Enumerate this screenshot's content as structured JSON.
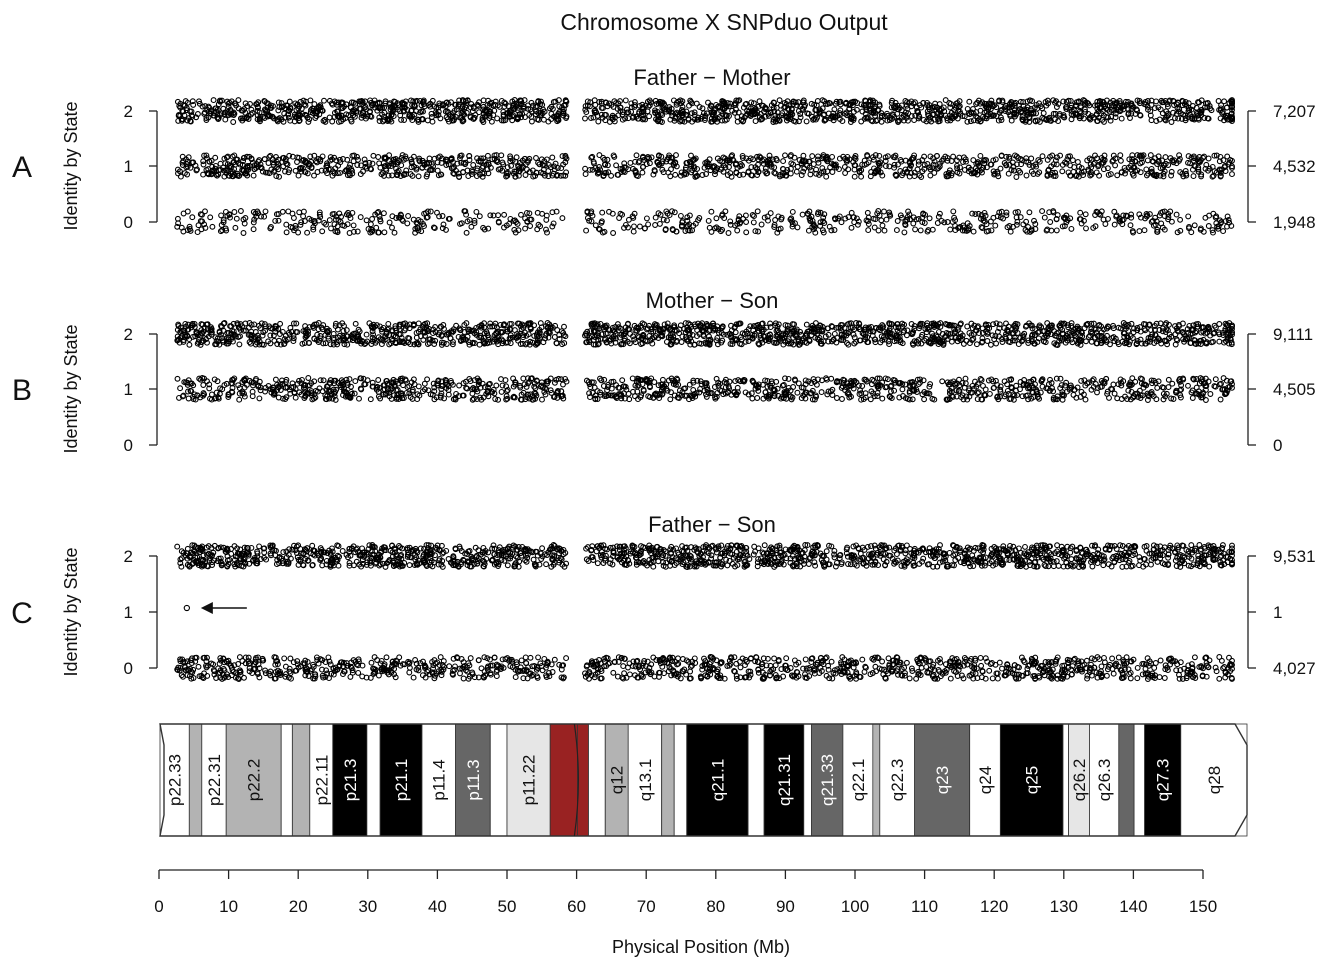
{
  "chart_data": {
    "type": "scatter",
    "title": "Chromosome X SNPduo Output",
    "xlabel": "Physical Position (Mb)",
    "xlim": [
      0,
      150
    ],
    "xticks": [
      0,
      10,
      20,
      30,
      40,
      50,
      60,
      70,
      80,
      90,
      100,
      110,
      120,
      130,
      140,
      150
    ],
    "centromere_gap_mb": [
      58.6,
      61.2
    ],
    "point_range_mb": [
      2.6,
      154.9
    ],
    "panels": [
      {
        "letter": "A",
        "title": "Father − Mother",
        "ylabel": "Identity by State",
        "yticks": [
          0,
          1,
          2
        ],
        "ibs_counts": {
          "2": "7,207",
          "1": "4,532",
          "0": "1,948"
        },
        "rows": [
          {
            "ibs": 2,
            "count": 7207,
            "density": 1.0
          },
          {
            "ibs": 1,
            "count": 4532,
            "density": 0.75
          },
          {
            "ibs": 0,
            "count": 1948,
            "density": 0.45
          }
        ],
        "annotation": null
      },
      {
        "letter": "B",
        "title": "Mother − Son",
        "ylabel": "Identity by State",
        "yticks": [
          0,
          1,
          2
        ],
        "ibs_counts": {
          "2": "9,111",
          "1": "4,505",
          "0": "0"
        },
        "rows": [
          {
            "ibs": 2,
            "count": 9111,
            "density": 1.0
          },
          {
            "ibs": 1,
            "count": 4505,
            "density": 0.75
          }
        ],
        "annotation": null
      },
      {
        "letter": "C",
        "title": "Father − Son",
        "ylabel": "Identity by State",
        "yticks": [
          0,
          1,
          2
        ],
        "ibs_counts": {
          "2": "9,531",
          "1": "1",
          "0": "4,027"
        },
        "rows": [
          {
            "ibs": 2,
            "count": 9531,
            "density": 1.0
          },
          {
            "ibs": 0,
            "count": 4027,
            "density": 0.75
          }
        ],
        "single_points": [
          {
            "ibs": 1,
            "x": 4.0
          }
        ],
        "annotation": {
          "type": "arrow",
          "points_to": {
            "ibs": 1,
            "x": 4.0
          }
        }
      }
    ],
    "ideogram": {
      "bands": [
        {
          "name": "p22.33",
          "start": 0.0,
          "end": 4.2,
          "stain": "gneg"
        },
        {
          "name": "",
          "start": 4.2,
          "end": 6.0,
          "stain": "gpos50"
        },
        {
          "name": "p22.31",
          "start": 6.0,
          "end": 9.5,
          "stain": "gneg"
        },
        {
          "name": "p22.2",
          "start": 9.5,
          "end": 17.4,
          "stain": "gpos50"
        },
        {
          "name": "",
          "start": 17.4,
          "end": 19.0,
          "stain": "gneg"
        },
        {
          "name": "",
          "start": 19.0,
          "end": 21.5,
          "stain": "gpos50"
        },
        {
          "name": "p22.11",
          "start": 21.5,
          "end": 24.8,
          "stain": "gneg"
        },
        {
          "name": "p21.3",
          "start": 24.8,
          "end": 29.7,
          "stain": "gpos100"
        },
        {
          "name": "",
          "start": 29.7,
          "end": 31.6,
          "stain": "gneg"
        },
        {
          "name": "p21.1",
          "start": 31.6,
          "end": 37.6,
          "stain": "gpos100"
        },
        {
          "name": "p11.4",
          "start": 37.6,
          "end": 42.4,
          "stain": "gneg"
        },
        {
          "name": "p11.3",
          "start": 42.4,
          "end": 47.4,
          "stain": "gpos75"
        },
        {
          "name": "",
          "start": 47.4,
          "end": 49.8,
          "stain": "gneg"
        },
        {
          "name": "p11.22",
          "start": 49.8,
          "end": 56.0,
          "stain": "gpos25"
        },
        {
          "name": "",
          "start": 56.0,
          "end": 59.9,
          "stain": "acen"
        },
        {
          "name": "",
          "start": 59.9,
          "end": 61.5,
          "stain": "acen"
        },
        {
          "name": "",
          "start": 61.5,
          "end": 63.9,
          "stain": "gneg"
        },
        {
          "name": "q12",
          "start": 63.9,
          "end": 67.2,
          "stain": "gpos50"
        },
        {
          "name": "q13.1",
          "start": 67.2,
          "end": 72.0,
          "stain": "gneg"
        },
        {
          "name": "",
          "start": 72.0,
          "end": 73.8,
          "stain": "gpos50"
        },
        {
          "name": "",
          "start": 73.8,
          "end": 75.6,
          "stain": "gneg"
        },
        {
          "name": "q21.1",
          "start": 75.6,
          "end": 84.4,
          "stain": "gpos100"
        },
        {
          "name": "",
          "start": 84.4,
          "end": 86.7,
          "stain": "gneg"
        },
        {
          "name": "q21.31",
          "start": 86.7,
          "end": 92.4,
          "stain": "gpos100"
        },
        {
          "name": "",
          "start": 92.4,
          "end": 93.5,
          "stain": "gneg"
        },
        {
          "name": "q21.33",
          "start": 93.5,
          "end": 98.0,
          "stain": "gpos75"
        },
        {
          "name": "q22.1",
          "start": 98.0,
          "end": 102.3,
          "stain": "gneg"
        },
        {
          "name": "",
          "start": 102.3,
          "end": 103.3,
          "stain": "gpos50"
        },
        {
          "name": "q22.3",
          "start": 103.3,
          "end": 108.3,
          "stain": "gneg"
        },
        {
          "name": "q23",
          "start": 108.3,
          "end": 116.2,
          "stain": "gpos75"
        },
        {
          "name": "q24",
          "start": 116.2,
          "end": 120.6,
          "stain": "gneg"
        },
        {
          "name": "q25",
          "start": 120.6,
          "end": 129.6,
          "stain": "gpos100"
        },
        {
          "name": "",
          "start": 129.6,
          "end": 130.4,
          "stain": "gneg"
        },
        {
          "name": "q26.2",
          "start": 130.4,
          "end": 133.4,
          "stain": "gpos25"
        },
        {
          "name": "q26.3",
          "start": 133.4,
          "end": 137.6,
          "stain": "gneg"
        },
        {
          "name": "",
          "start": 137.6,
          "end": 139.8,
          "stain": "gpos75"
        },
        {
          "name": "",
          "start": 139.8,
          "end": 141.3,
          "stain": "gneg"
        },
        {
          "name": "q27.3",
          "start": 141.3,
          "end": 146.5,
          "stain": "gpos100"
        },
        {
          "name": "q28",
          "start": 146.5,
          "end": 156.0,
          "stain": "gneg"
        }
      ],
      "stain_colors": {
        "gneg": "#ffffff",
        "gpos25": "#e6e6e6",
        "gpos50": "#b3b3b3",
        "gpos75": "#666666",
        "gpos100": "#000000",
        "acen": "#992222"
      }
    }
  }
}
